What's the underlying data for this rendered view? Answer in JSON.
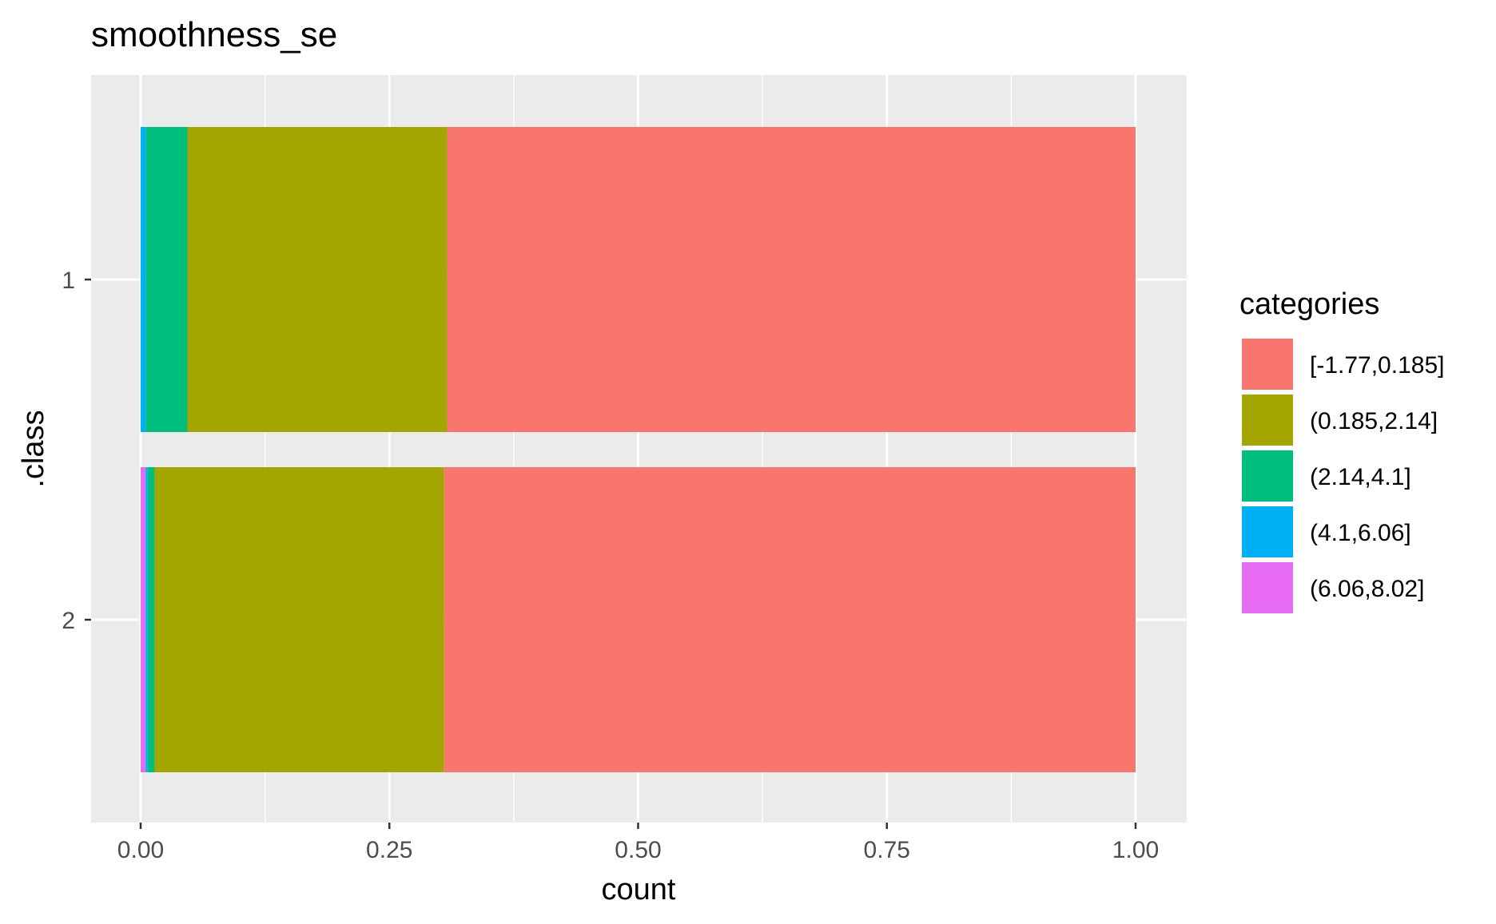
{
  "chart_data": {
    "type": "bar",
    "orientation": "horizontal",
    "stacked": true,
    "title": "smoothness_se",
    "xlabel": "count",
    "ylabel": ".class",
    "xlim": [
      0,
      1
    ],
    "x_ticks": [
      0.0,
      0.25,
      0.5,
      0.75,
      1.0
    ],
    "x_tick_labels": [
      "0.00",
      "0.25",
      "0.50",
      "0.75",
      "1.00"
    ],
    "categories": [
      "1",
      "2"
    ],
    "legend_title": "categories",
    "legend_position": "right",
    "grid": true,
    "series": [
      {
        "name": "[-1.77,0.185]",
        "color": "#F8766D",
        "values": [
          0.692,
          0.695
        ]
      },
      {
        "name": "(0.185,2.14]",
        "color": "#A3A500",
        "values": [
          0.261,
          0.291
        ]
      },
      {
        "name": "(2.14,4.1]",
        "color": "#00BF7D",
        "values": [
          0.042,
          0.007
        ]
      },
      {
        "name": "(4.1,6.06]",
        "color": "#00B0F6",
        "values": [
          0.005,
          0.002
        ]
      },
      {
        "name": "(6.06,8.02]",
        "color": "#E76BF3",
        "values": [
          0.0,
          0.005
        ]
      }
    ],
    "stack_order_from_zero": [
      "(6.06,8.02]",
      "(4.1,6.06]",
      "(2.14,4.1]",
      "(0.185,2.14]",
      "[-1.77,0.185]"
    ],
    "panel_background": "#EBEBEB",
    "gridline_color": "#FFFFFF"
  }
}
